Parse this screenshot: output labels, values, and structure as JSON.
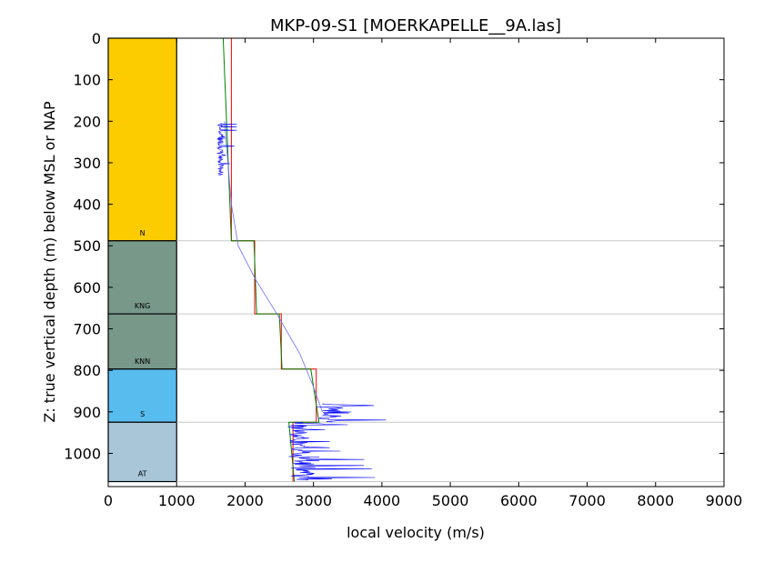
{
  "chart_data": {
    "type": "line",
    "title": "MKP-09-S1 [MOERKAPELLE__9A.las]",
    "xlabel": "local velocity (m/s)",
    "ylabel": "Z: true vertical depth (m) below MSL or NAP",
    "xlim": [
      0,
      9000
    ],
    "ylim": [
      1080,
      0
    ],
    "x_ticks": [
      0,
      1000,
      2000,
      3000,
      4000,
      5000,
      6000,
      7000,
      8000,
      9000
    ],
    "y_ticks": [
      0,
      100,
      200,
      300,
      400,
      500,
      600,
      700,
      800,
      900,
      1000
    ],
    "grid": false,
    "units": [
      {
        "label": "N",
        "top": 0,
        "base": 488,
        "color": "#fccc00"
      },
      {
        "label": "KNG",
        "top": 488,
        "base": 664,
        "color": "#78988a"
      },
      {
        "label": "KNN",
        "top": 664,
        "base": 797,
        "color": "#78988a"
      },
      {
        "label": "S",
        "top": 797,
        "base": 925,
        "color": "#58bcee"
      },
      {
        "label": "AT",
        "top": 925,
        "base": 1068,
        "color": "#a8c6d8"
      }
    ],
    "boundary_lines": [
      488,
      664,
      797,
      925,
      1068
    ],
    "series": [
      {
        "kind": "step",
        "color": "#ff0000",
        "points": [
          [
            1800,
            0
          ],
          [
            1800,
            488
          ],
          [
            2140,
            488
          ],
          [
            2140,
            664
          ],
          [
            2530,
            664
          ],
          [
            2530,
            797
          ],
          [
            3040,
            797
          ],
          [
            3040,
            925
          ],
          [
            2700,
            925
          ],
          [
            2700,
            1068
          ]
        ]
      },
      {
        "kind": "step",
        "color": "#007f00",
        "points": [
          [
            1680,
            0
          ],
          [
            1800,
            488
          ],
          [
            2130,
            488
          ],
          [
            2170,
            664
          ],
          [
            2500,
            664
          ],
          [
            2540,
            797
          ],
          [
            2960,
            797
          ],
          [
            3080,
            925
          ],
          [
            2640,
            925
          ],
          [
            2720,
            1068
          ]
        ]
      },
      {
        "kind": "line",
        "color": "#6a6aff",
        "points": [
          [
            1700,
            200
          ],
          [
            1750,
            300
          ],
          [
            1800,
            400
          ],
          [
            1900,
            500
          ],
          [
            2150,
            580
          ],
          [
            2450,
            660
          ],
          [
            2800,
            760
          ],
          [
            3000,
            840
          ],
          [
            3130,
            900
          ]
        ]
      },
      {
        "kind": "log",
        "color": "#0000ff",
        "segments": [
          {
            "from": 205,
            "to": 330,
            "min": 1550,
            "max": 1880
          },
          {
            "from": 880,
            "to": 925,
            "min": 2900,
            "max": 4150
          },
          {
            "from": 925,
            "to": 1010,
            "min": 2500,
            "max": 3500
          },
          {
            "from": 1010,
            "to": 1065,
            "min": 2500,
            "max": 3900
          }
        ]
      }
    ]
  }
}
